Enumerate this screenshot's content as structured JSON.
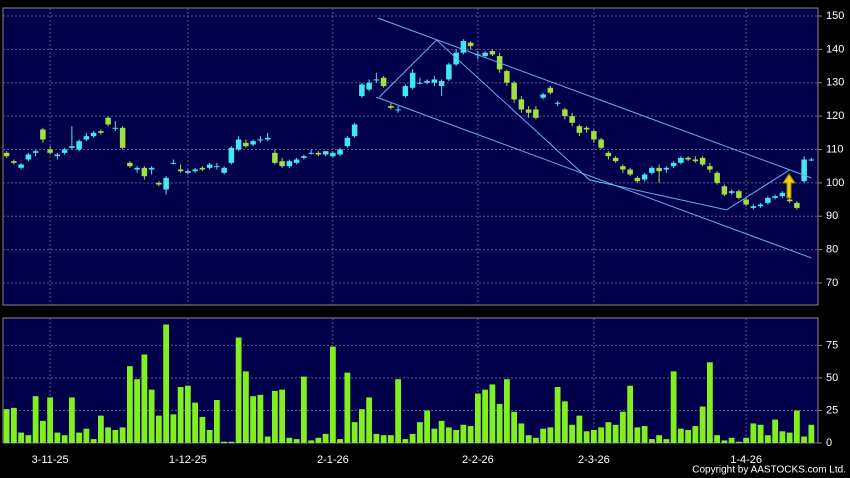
{
  "chart_data": [
    {
      "type": "candlestick",
      "categories": [
        null,
        null,
        null,
        null,
        null,
        null,
        "3-11-25",
        null,
        null,
        null,
        null,
        null,
        null,
        null,
        null,
        null,
        null,
        null,
        null,
        null,
        null,
        null,
        null,
        null,
        null,
        "1-12-25",
        null,
        null,
        null,
        null,
        null,
        null,
        null,
        null,
        null,
        null,
        null,
        null,
        null,
        null,
        null,
        null,
        null,
        null,
        null,
        "2-1-26",
        null,
        null,
        null,
        null,
        null,
        null,
        null,
        null,
        null,
        null,
        null,
        null,
        null,
        null,
        null,
        null,
        null,
        null,
        null,
        "2-2-26",
        null,
        null,
        null,
        null,
        null,
        null,
        null,
        null,
        null,
        null,
        null,
        null,
        null,
        null,
        null,
        "2-3-26",
        null,
        null,
        null,
        null,
        null,
        null,
        null,
        null,
        null,
        null,
        null,
        null,
        null,
        null,
        null,
        null,
        null,
        null,
        null,
        null,
        "1-4-26",
        null,
        null,
        null,
        null,
        null,
        null,
        null,
        null,
        null
      ],
      "ohlc": [
        [
          109,
          109.5,
          107.5,
          108
        ],
        [
          106.5,
          107,
          105.5,
          106
        ],
        [
          104.5,
          106,
          104,
          105.5
        ],
        [
          107,
          109,
          106.5,
          108.5
        ],
        [
          109,
          110,
          108,
          109.5
        ],
        [
          116,
          116.5,
          112,
          113
        ],
        [
          110,
          111,
          108.5,
          109
        ],
        [
          108,
          109,
          107,
          108.5
        ],
        [
          109,
          110.5,
          108.5,
          110
        ],
        [
          110.5,
          117,
          110,
          111
        ],
        [
          110,
          113,
          109.5,
          112.5
        ],
        [
          113,
          115,
          112.5,
          114
        ],
        [
          114,
          115.5,
          113.5,
          115
        ],
        [
          115.5,
          116,
          114.5,
          115
        ],
        [
          119.5,
          120,
          117,
          117.5
        ],
        [
          116.5,
          118.5,
          115.5,
          116.5
        ],
        [
          116.5,
          117,
          110,
          110.5
        ],
        [
          106,
          106.5,
          104.5,
          105
        ],
        [
          104,
          105,
          103,
          104.5
        ],
        [
          104.5,
          105,
          101,
          102
        ],
        [
          104,
          105,
          102.5,
          104.5
        ],
        [
          100,
          100.5,
          99,
          99.5
        ],
        [
          98,
          102,
          96.5,
          101.5
        ],
        [
          106,
          107,
          105.5,
          106
        ],
        [
          104,
          105.5,
          103,
          103.5
        ],
        [
          103,
          104,
          102.5,
          103.5
        ],
        [
          103.5,
          104.5,
          103,
          104
        ],
        [
          104.5,
          105,
          103.5,
          104
        ],
        [
          104.5,
          106,
          104,
          105.5
        ],
        [
          105,
          106,
          104,
          105
        ],
        [
          103,
          105,
          102.5,
          104.5
        ],
        [
          106,
          111,
          105.5,
          110.5
        ],
        [
          110,
          114,
          109.5,
          113
        ],
        [
          112,
          113,
          110.5,
          111
        ],
        [
          111.5,
          113,
          111,
          112.5
        ],
        [
          113,
          114,
          112,
          113
        ],
        [
          113,
          115,
          112.5,
          113.5
        ],
        [
          109,
          110,
          105.5,
          106
        ],
        [
          106.5,
          107.5,
          104.5,
          105
        ],
        [
          105,
          107,
          104.5,
          106.5
        ],
        [
          106,
          107.5,
          105.5,
          107
        ],
        [
          107.5,
          108.5,
          107,
          108
        ],
        [
          109,
          110,
          108.5,
          109
        ],
        [
          109,
          109.5,
          108,
          108.5
        ],
        [
          108.5,
          109.5,
          108,
          109.5
        ],
        [
          108,
          109.5,
          107.5,
          109
        ],
        [
          108.5,
          110.5,
          108,
          110
        ],
        [
          111,
          114,
          110.5,
          113.5
        ],
        [
          114,
          118,
          113.5,
          117.5
        ],
        [
          126,
          130,
          125.5,
          129.5
        ],
        [
          128,
          131,
          127.5,
          130
        ],
        [
          131,
          133,
          130,
          131
        ],
        [
          131.5,
          132,
          128.5,
          129
        ],
        [
          123,
          124,
          122,
          122.5
        ],
        [
          122,
          123,
          121,
          122
        ],
        [
          126,
          129.5,
          125.5,
          129
        ],
        [
          128.5,
          134,
          128,
          133
        ],
        [
          130,
          131.5,
          129.5,
          130
        ],
        [
          130,
          131,
          129.5,
          130.5
        ],
        [
          130,
          132,
          129,
          131
        ],
        [
          129,
          131,
          126,
          130.5
        ],
        [
          131,
          136,
          130.5,
          135.5
        ],
        [
          135.5,
          140,
          135,
          139
        ],
        [
          139,
          143,
          138.5,
          142.5
        ],
        [
          142,
          142.5,
          140,
          141
        ],
        [
          138.5,
          139.5,
          137,
          138.5
        ],
        [
          138,
          139.5,
          137.5,
          139
        ],
        [
          139.5,
          140,
          138,
          138.5
        ],
        [
          138,
          139,
          133,
          134
        ],
        [
          133.5,
          134,
          129,
          130
        ],
        [
          130,
          130.5,
          124,
          125
        ],
        [
          125,
          126,
          121,
          122
        ],
        [
          122,
          123,
          119.5,
          121
        ],
        [
          122,
          123,
          119,
          119.5
        ],
        [
          125.5,
          127,
          125,
          126.5
        ],
        [
          128.5,
          129,
          126.5,
          127
        ],
        [
          124,
          124.5,
          123,
          124
        ],
        [
          122,
          122.5,
          119,
          120
        ],
        [
          120,
          121,
          117,
          118
        ],
        [
          117,
          117.5,
          114,
          115
        ],
        [
          116.5,
          117,
          115,
          116
        ],
        [
          115.5,
          116,
          112,
          113
        ],
        [
          113,
          113.5,
          110,
          110.5
        ],
        [
          109,
          109.5,
          107,
          108
        ],
        [
          107.5,
          108,
          106,
          106.5
        ],
        [
          105,
          105.5,
          103,
          104
        ],
        [
          104,
          104.5,
          102,
          102.5
        ],
        [
          101.5,
          102,
          100,
          100.5
        ],
        [
          101,
          103,
          100.5,
          102.5
        ],
        [
          103,
          105,
          102.5,
          104.5
        ],
        [
          104.5,
          105.5,
          100,
          103.5
        ],
        [
          104,
          105,
          103,
          104.5
        ],
        [
          105,
          106.5,
          104.5,
          106
        ],
        [
          106,
          108,
          105.5,
          107.5
        ],
        [
          107.5,
          108,
          106.5,
          107
        ],
        [
          107,
          108,
          106,
          106.5
        ],
        [
          107.5,
          108,
          105,
          105.5
        ],
        [
          105,
          106,
          103,
          104
        ],
        [
          103,
          103.5,
          99.5,
          100
        ],
        [
          99,
          99.5,
          96,
          96.5
        ],
        [
          97,
          98,
          96.5,
          97.5
        ],
        [
          97.5,
          98,
          95,
          95.5
        ],
        [
          95,
          95.5,
          93,
          93.5
        ],
        [
          92.5,
          93.5,
          92,
          93
        ],
        [
          93,
          94,
          92.5,
          93.5
        ],
        [
          94,
          96,
          93.5,
          95.5
        ],
        [
          95.5,
          96.5,
          95,
          96
        ],
        [
          96,
          97.5,
          95.5,
          97
        ],
        [
          95,
          95.5,
          94,
          94.5
        ],
        [
          94,
          94.5,
          92,
          92.5
        ],
        [
          100.5,
          108,
          100,
          107
        ],
        [
          107,
          107.5,
          106.5,
          107
        ]
      ],
      "up_color": "#40e8f0",
      "down_color": "#a0e040",
      "ylim": [
        63.4,
        152.4
      ],
      "yticks": [
        70,
        80,
        90,
        100,
        110,
        120,
        130,
        140,
        150
      ],
      "grid": true,
      "trendlines": [
        {
          "color": "#6ab0f0",
          "points": [
            [
              51.2,
              149.4
            ],
            [
              111,
              101.5
            ]
          ]
        },
        {
          "color": "#6ab0f0",
          "points": [
            [
              51,
              125.7
            ],
            [
              111,
              77.5
            ]
          ]
        },
        {
          "color": "#6ab0f0",
          "points": [
            [
              51.4,
              125.7
            ],
            [
              59.3,
              142.8
            ],
            [
              80.4,
              100.9
            ],
            [
              99.3,
              91.9
            ],
            [
              108,
              103.9
            ]
          ]
        }
      ]
    },
    {
      "type": "bar",
      "color": "#80f020",
      "values": [
        26,
        27,
        8,
        6,
        36,
        17,
        35,
        8,
        6,
        35,
        8,
        11,
        3,
        21,
        12,
        10,
        12,
        59,
        49,
        68,
        41,
        21,
        91,
        22,
        43,
        44,
        31,
        20,
        10,
        33,
        1,
        1,
        81,
        55,
        36,
        37,
        5,
        40,
        41,
        4,
        3,
        51,
        2,
        4,
        7,
        74,
        3,
        54,
        16,
        26,
        35,
        7,
        6,
        6,
        49,
        3,
        7,
        16,
        25,
        11,
        17,
        12,
        10,
        14,
        13,
        38,
        41,
        45,
        30,
        49,
        24,
        15,
        6,
        4,
        11,
        12,
        43,
        32,
        14,
        21,
        9,
        10,
        12,
        16,
        14,
        24,
        44,
        12,
        13,
        3,
        6,
        3,
        55,
        11,
        10,
        13,
        28,
        62,
        6,
        2,
        4,
        1,
        4,
        15,
        14,
        6,
        18,
        9,
        8,
        25,
        5,
        14
      ],
      "ylim": [
        0,
        96
      ],
      "yticks": [
        0,
        25,
        50,
        75
      ],
      "grid": true,
      "copyright": "Copyright by AASTOCKS.com Ltd."
    }
  ]
}
